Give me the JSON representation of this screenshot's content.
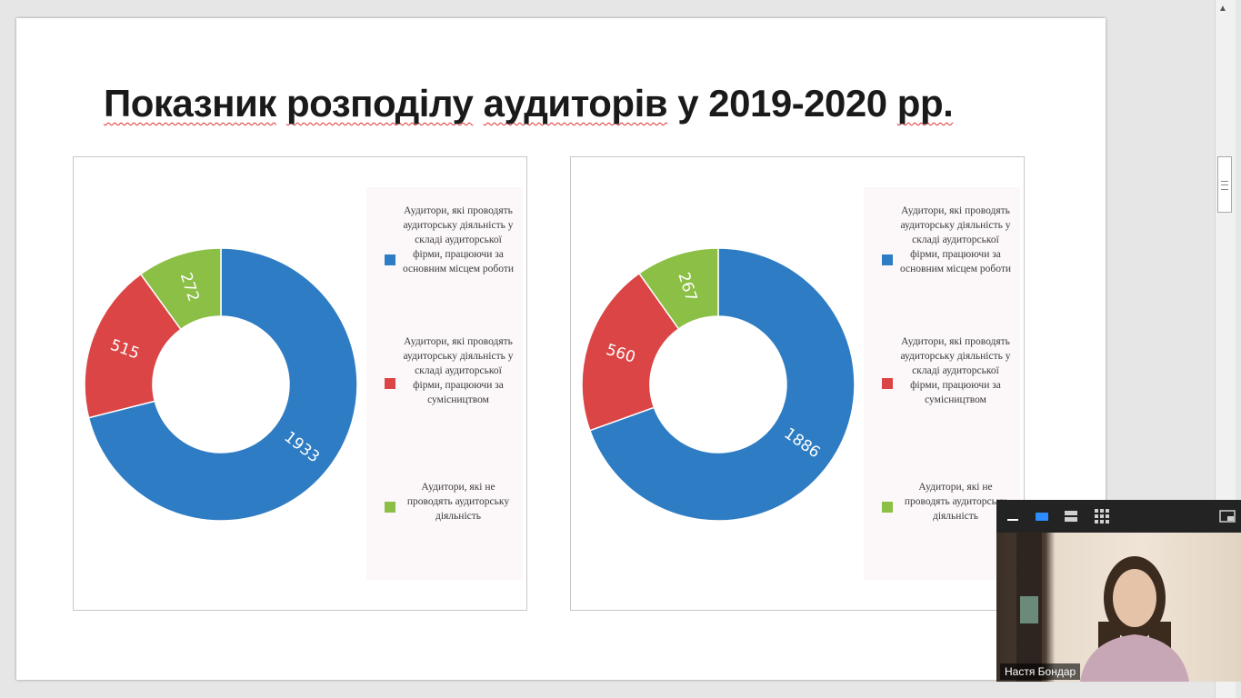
{
  "slide": {
    "title_words": [
      "Показник",
      "розподілу",
      "аудиторів",
      "у",
      "2019-2020",
      "рр."
    ]
  },
  "colors": {
    "blue": "#2e7cc4",
    "red": "#db4545",
    "green": "#8cbf45"
  },
  "chart_data": [
    {
      "type": "pie",
      "title": "",
      "hole": 0.5,
      "categories": [
        "Аудитори, які проводять аудиторську діяльність у складі аудиторської фірми, працюючи за основним місцем роботи",
        "Аудитори, які проводять аудиторську діяльність у складі аудиторської фірми, працюючи за сумісництвом",
        "Аудитори, які не проводять аудиторську діяльність"
      ],
      "values": [
        1933,
        515,
        272
      ],
      "colors": [
        "#2e7cc4",
        "#db4545",
        "#8cbf45"
      ],
      "legend": "right"
    },
    {
      "type": "pie",
      "title": "",
      "hole": 0.5,
      "categories": [
        "Аудитори, які проводять аудиторську діяльність у складі аудиторської фірми, працюючи за основним місцем роботи",
        "Аудитори, які проводять аудиторську діяльність у складі аудиторської фірми, працюючи за сумісництвом",
        "Аудитори, які не проводять аудиторську діяльність"
      ],
      "values": [
        1886,
        560,
        267
      ],
      "colors": [
        "#2e7cc4",
        "#db4545",
        "#8cbf45"
      ],
      "legend": "right"
    }
  ],
  "video": {
    "participant_name": "Настя Бондар",
    "toolbar_icons": [
      "minimize-icon",
      "speaker-view-icon",
      "strip-view-icon",
      "gallery-view-icon",
      "picture-in-picture-icon"
    ]
  }
}
